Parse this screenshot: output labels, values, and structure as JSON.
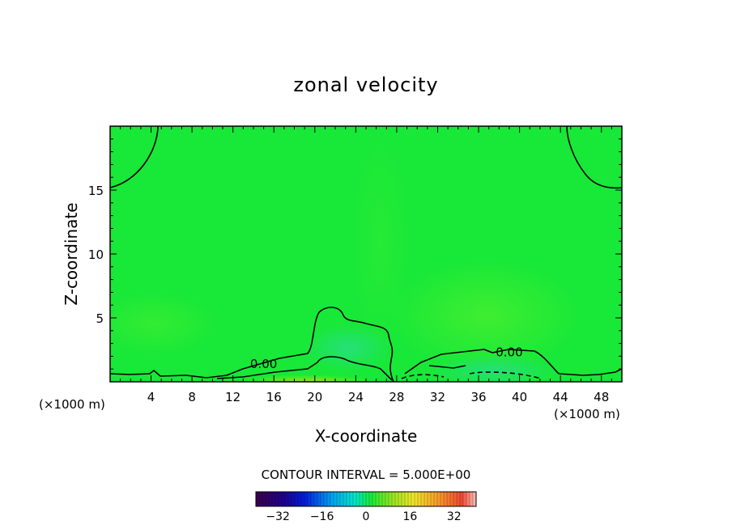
{
  "chart_data": {
    "type": "heatmap",
    "title": "zonal velocity",
    "xlabel": "X-coordinate",
    "ylabel": "Z-coordinate",
    "x_units": "(×1000 m)",
    "z_units": "(×1000 m)",
    "xlim": [
      0,
      50
    ],
    "ylim": [
      0,
      20
    ],
    "x_ticks": [
      4,
      8,
      12,
      16,
      20,
      24,
      28,
      32,
      36,
      40,
      44,
      48
    ],
    "y_ticks": [
      5,
      10,
      15
    ],
    "contour_labels": [
      {
        "text": "0.00",
        "x": 15,
        "z": 1.4
      },
      {
        "text": "0.00",
        "x": 39,
        "z": 2.3
      }
    ],
    "contour_interval_text": "CONTOUR INTERVAL = 5.000E+00",
    "colorbar": {
      "range": [
        -40,
        40
      ],
      "ticks": [
        -32,
        -16,
        0,
        16,
        32
      ],
      "tick_labels": [
        "−32",
        "−16",
        "0",
        "16",
        "32"
      ]
    }
  }
}
